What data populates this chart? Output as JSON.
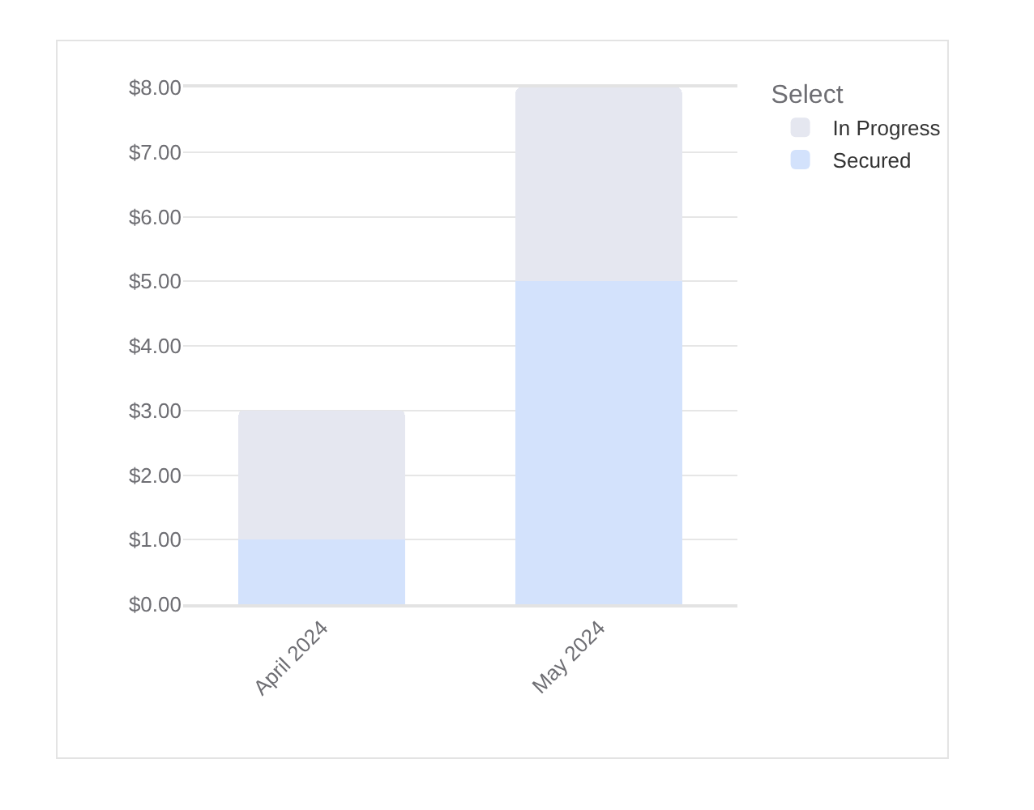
{
  "chart_data": {
    "type": "bar",
    "stacked": true,
    "categories": [
      "April 2024",
      "May 2024"
    ],
    "series": [
      {
        "name": "Secured",
        "color": "#d3e2fc",
        "values": [
          1,
          5
        ]
      },
      {
        "name": "In Progress",
        "color": "#e5e7f0",
        "values": [
          2,
          3
        ]
      }
    ],
    "ylim": [
      0,
      8
    ],
    "yticks": [
      {
        "value": 0,
        "label": "$0.00"
      },
      {
        "value": 1,
        "label": "$1.00"
      },
      {
        "value": 2,
        "label": "$2.00"
      },
      {
        "value": 3,
        "label": "$3.00"
      },
      {
        "value": 4,
        "label": "$4.00"
      },
      {
        "value": 5,
        "label": "$5.00"
      },
      {
        "value": 6,
        "label": "$6.00"
      },
      {
        "value": 7,
        "label": "$7.00"
      },
      {
        "value": 8,
        "label": "$8.00"
      }
    ],
    "grid": "y",
    "legend": "top right",
    "legend_title": "Select"
  }
}
